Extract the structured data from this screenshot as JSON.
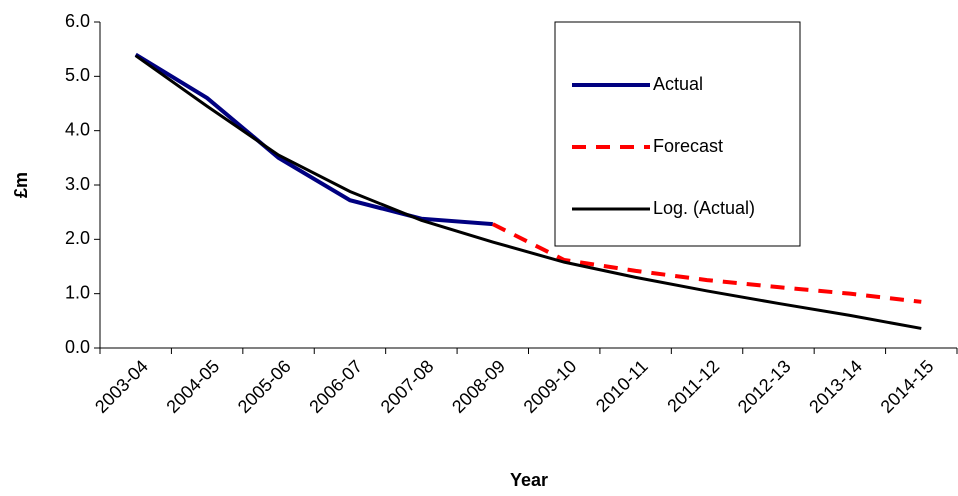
{
  "chart_data": {
    "type": "line",
    "x_label": "Year",
    "y_label": "£m",
    "categories": [
      "2003-04",
      "2004-05",
      "2005-06",
      "2006-07",
      "2007-08",
      "2008-09",
      "2009-10",
      "2010-11",
      "2011-12",
      "2012-13",
      "2013-14",
      "2014-15"
    ],
    "series": [
      {
        "name": "Actual",
        "color": "#000080",
        "dash": "solid",
        "width": 4,
        "values": [
          5.4,
          4.6,
          3.5,
          2.72,
          2.38,
          2.28,
          null,
          null,
          null,
          null,
          null,
          null
        ]
      },
      {
        "name": "Forecast",
        "color": "#ff0000",
        "dash": "dashed",
        "width": 4,
        "values": [
          null,
          null,
          null,
          null,
          null,
          2.28,
          1.62,
          1.42,
          1.25,
          1.12,
          1.0,
          0.85
        ]
      },
      {
        "name": "Log. (Actual)",
        "color": "#000000",
        "dash": "solid",
        "width": 3,
        "values": [
          5.38,
          4.45,
          3.55,
          2.88,
          2.35,
          1.95,
          1.58,
          1.3,
          1.05,
          0.82,
          0.6,
          0.36
        ]
      }
    ],
    "ylim": [
      0,
      6
    ],
    "yticks": [
      {
        "value": 0,
        "label": "0.0"
      },
      {
        "value": 1,
        "label": "1.0"
      },
      {
        "value": 2,
        "label": "2.0"
      },
      {
        "value": 3,
        "label": "3.0"
      },
      {
        "value": 4,
        "label": "4.0"
      },
      {
        "value": 5,
        "label": "5.0"
      },
      {
        "value": 6,
        "label": "6.0"
      }
    ],
    "legend": "upper-right"
  }
}
